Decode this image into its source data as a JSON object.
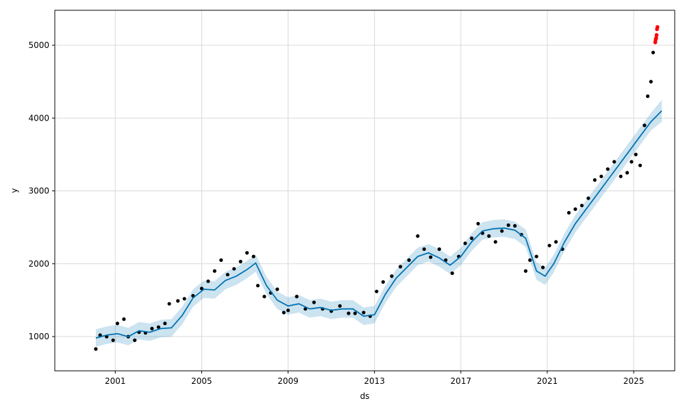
{
  "chart_data": {
    "type": "line",
    "title": "",
    "xlabel": "ds",
    "ylabel": "y",
    "x_domain": [
      1998.2,
      2026.9
    ],
    "ylim": [
      530,
      5480
    ],
    "x_ticks": [
      {
        "value": 2001,
        "label": "2001"
      },
      {
        "value": 2005,
        "label": "2005"
      },
      {
        "value": 2009,
        "label": "2009"
      },
      {
        "value": 2013,
        "label": "2013"
      },
      {
        "value": 2017,
        "label": "2017"
      },
      {
        "value": 2021,
        "label": "2021"
      },
      {
        "value": 2025,
        "label": "2025"
      }
    ],
    "y_ticks": [
      {
        "value": 1000,
        "label": "1000"
      },
      {
        "value": 2000,
        "label": "2000"
      },
      {
        "value": 3000,
        "label": "3000"
      },
      {
        "value": 4000,
        "label": "4000"
      },
      {
        "value": 5000,
        "label": "5000"
      }
    ],
    "grid": true,
    "colors": {
      "observed": "#000000",
      "forecast": "#0072B2",
      "uncertainty": "#0072B2",
      "outlier": "#ff0000",
      "grid": "#d9d9d9"
    },
    "series": [
      {
        "role": "observed",
        "x": [
          2000.1,
          2000.3,
          2000.6,
          2000.9,
          2001.1,
          2001.4,
          2001.6,
          2001.9,
          2002.1,
          2002.4,
          2002.7,
          2003.0,
          2003.3,
          2003.5,
          2003.9,
          2004.2,
          2004.6,
          2005.0,
          2005.3,
          2005.6,
          2005.9,
          2006.2,
          2006.5,
          2006.8,
          2007.1,
          2007.4,
          2007.6,
          2007.9,
          2008.2,
          2008.5,
          2008.8,
          2009.0,
          2009.4,
          2009.8,
          2010.2,
          2010.6,
          2011.0,
          2011.4,
          2011.8,
          2012.1,
          2012.5,
          2012.8,
          2013.1,
          2013.4,
          2013.8,
          2014.2,
          2014.6,
          2015.0,
          2015.3,
          2015.6,
          2016.0,
          2016.3,
          2016.6,
          2016.9,
          2017.2,
          2017.5,
          2017.8,
          2018.0,
          2018.3,
          2018.6,
          2018.9,
          2019.2,
          2019.5,
          2019.8,
          2020.0,
          2020.2,
          2020.5,
          2020.8,
          2021.1,
          2021.4,
          2021.7,
          2022.0,
          2022.3,
          2022.6,
          2022.9,
          2023.2,
          2023.5,
          2023.8,
          2024.1,
          2024.4,
          2024.7,
          2024.9,
          2025.1,
          2025.3,
          2025.5,
          2025.65,
          2025.8,
          2025.9,
          2026.0
        ],
        "y": [
          830,
          1020,
          1000,
          950,
          1180,
          1240,
          1000,
          950,
          1060,
          1050,
          1110,
          1130,
          1180,
          1450,
          1490,
          1520,
          1560,
          1660,
          1760,
          1900,
          2050,
          1850,
          1930,
          2030,
          2150,
          2100,
          1700,
          1550,
          1600,
          1650,
          1330,
          1360,
          1550,
          1380,
          1470,
          1380,
          1350,
          1420,
          1320,
          1320,
          1330,
          1280,
          1620,
          1750,
          1830,
          1960,
          2050,
          2380,
          2200,
          2090,
          2200,
          2050,
          1870,
          2100,
          2280,
          2350,
          2550,
          2420,
          2380,
          2300,
          2450,
          2530,
          2520,
          2400,
          1900,
          2050,
          2100,
          1950,
          2250,
          2300,
          2200,
          2700,
          2750,
          2800,
          2900,
          3150,
          3200,
          3300,
          3400,
          3200,
          3250,
          3400,
          3500,
          3350,
          3900,
          4300,
          4500,
          4900,
          5050
        ]
      },
      {
        "role": "outlier",
        "x": [
          2026.0,
          2026.02,
          2026.04,
          2026.06,
          2026.08,
          2026.1
        ],
        "y": [
          5040,
          5080,
          5100,
          5140,
          5220,
          5250
        ]
      },
      {
        "role": "forecast",
        "x": [
          2000.1,
          2000.6,
          2001.1,
          2001.6,
          2002.1,
          2002.6,
          2003.1,
          2003.6,
          2004.1,
          2004.6,
          2005.1,
          2005.6,
          2006.1,
          2006.6,
          2007.1,
          2007.5,
          2008.0,
          2008.5,
          2009.0,
          2009.5,
          2010.0,
          2010.5,
          2011.0,
          2011.5,
          2012.0,
          2012.5,
          2013.0,
          2013.5,
          2014.0,
          2014.5,
          2015.0,
          2015.5,
          2016.0,
          2016.5,
          2017.0,
          2017.5,
          2018.0,
          2018.5,
          2019.0,
          2019.5,
          2020.0,
          2020.5,
          2020.9,
          2021.3,
          2021.8,
          2022.3,
          2022.8,
          2023.3,
          2023.8,
          2024.3,
          2024.8,
          2025.3,
          2025.8,
          2026.3
        ],
        "y": [
          980,
          1020,
          1040,
          1000,
          1080,
          1060,
          1110,
          1120,
          1290,
          1530,
          1650,
          1640,
          1770,
          1830,
          1920,
          2010,
          1700,
          1500,
          1420,
          1450,
          1380,
          1400,
          1360,
          1380,
          1380,
          1280,
          1300,
          1580,
          1800,
          1950,
          2100,
          2150,
          2080,
          1980,
          2100,
          2300,
          2450,
          2480,
          2490,
          2460,
          2350,
          1900,
          1830,
          2000,
          2300,
          2550,
          2750,
          2950,
          3150,
          3350,
          3550,
          3750,
          3950,
          4100
        ]
      },
      {
        "role": "interval_lower",
        "y": [
          860,
          900,
          920,
          880,
          960,
          940,
          990,
          1000,
          1170,
          1410,
          1530,
          1520,
          1650,
          1710,
          1800,
          1890,
          1580,
          1380,
          1300,
          1330,
          1260,
          1280,
          1240,
          1260,
          1260,
          1160,
          1180,
          1460,
          1680,
          1830,
          1980,
          2030,
          1960,
          1860,
          1980,
          2180,
          2330,
          2360,
          2370,
          2340,
          2230,
          1780,
          1710,
          1880,
          2180,
          2430,
          2630,
          2830,
          3030,
          3230,
          3430,
          3630,
          3830,
          3950
        ]
      },
      {
        "role": "interval_upper",
        "y": [
          1100,
          1140,
          1160,
          1120,
          1200,
          1180,
          1230,
          1240,
          1410,
          1650,
          1770,
          1760,
          1890,
          1950,
          2040,
          2130,
          1820,
          1620,
          1540,
          1570,
          1500,
          1520,
          1480,
          1500,
          1500,
          1400,
          1420,
          1700,
          1920,
          2070,
          2220,
          2270,
          2200,
          2100,
          2220,
          2420,
          2570,
          2600,
          2610,
          2580,
          2470,
          2020,
          1950,
          2120,
          2420,
          2670,
          2870,
          3070,
          3270,
          3470,
          3670,
          3870,
          4070,
          4250
        ]
      }
    ]
  }
}
